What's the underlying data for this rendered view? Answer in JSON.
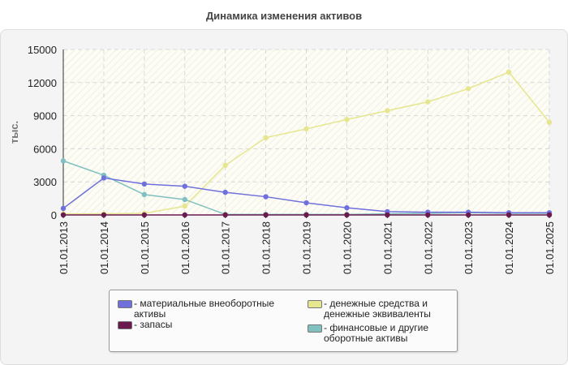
{
  "title": "Динамика изменения активов",
  "chart_data": {
    "type": "line",
    "ylabel": "тыс.",
    "ylim": [
      0,
      15000
    ],
    "yticks": [
      0,
      3000,
      6000,
      9000,
      12000,
      15000
    ],
    "x": [
      "01.01.2013",
      "01.01.2014",
      "01.01.2015",
      "01.01.2016",
      "01.01.2017",
      "01.01.2018",
      "01.01.2019",
      "01.01.2020",
      "01.01.2021",
      "01.01.2022",
      "01.01.2023",
      "01.01.2024",
      "01.01.2025"
    ],
    "grid": true,
    "legend_position": "bottom",
    "series": [
      {
        "name": "материальные внеоборотные\nактивы",
        "color": "#7070dd",
        "values": [
          600,
          3350,
          2800,
          2600,
          2050,
          1650,
          1100,
          650,
          300,
          250,
          250,
          200,
          200
        ]
      },
      {
        "name": "запасы",
        "color": "#6b1a4e",
        "values": [
          0,
          0,
          0,
          0,
          0,
          0,
          0,
          0,
          0,
          0,
          0,
          0,
          0
        ]
      },
      {
        "name": "денежные средства и\nденежные эквиваленты",
        "color": "#e6e690",
        "values": [
          100,
          100,
          150,
          800,
          4500,
          7000,
          7800,
          8650,
          9450,
          10250,
          11450,
          12950,
          8400
        ]
      },
      {
        "name": "финансовые и другие\nоборотные активы",
        "color": "#80c0c0",
        "values": [
          4900,
          3600,
          1850,
          1400,
          50,
          50,
          50,
          50,
          100,
          150,
          200,
          150,
          150
        ]
      }
    ]
  }
}
